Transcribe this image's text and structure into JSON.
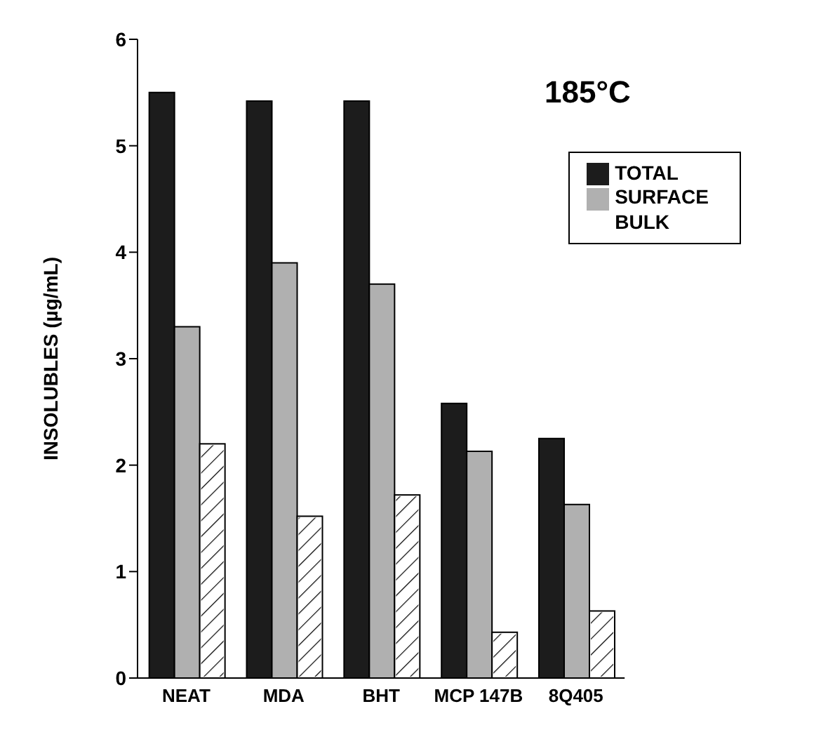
{
  "chart_data": {
    "type": "bar",
    "title": "185°C",
    "ylabel": "INSOLUBLES  (µg/mL)",
    "categories": [
      "NEAT",
      "MDA",
      "BHT",
      "MCP  147B",
      "8Q405"
    ],
    "series": [
      {
        "name": "TOTAL",
        "color": "#1c1c1c",
        "values": [
          5.5,
          5.42,
          5.42,
          2.58,
          2.25
        ]
      },
      {
        "name": "SURFACE",
        "color": "#b0b0b0",
        "values": [
          3.3,
          3.9,
          3.7,
          2.13,
          1.63
        ]
      },
      {
        "name": "BULK",
        "color": "#ffffff",
        "values": [
          2.2,
          1.52,
          1.72,
          0.43,
          0.63
        ]
      }
    ],
    "ylim": [
      0,
      6
    ],
    "yticks": [
      0,
      1,
      2,
      3,
      4,
      5,
      6
    ],
    "grid": false,
    "legend": "top right"
  }
}
